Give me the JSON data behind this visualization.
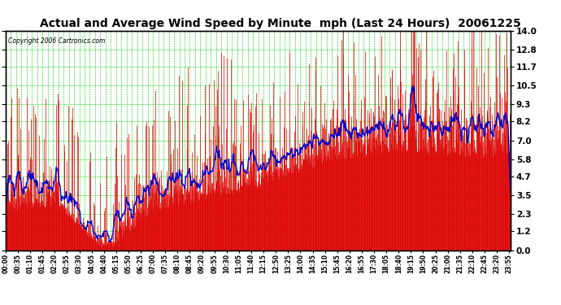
{
  "title": "Actual and Average Wind Speed by Minute  mph (Last 24 Hours)  20061225",
  "copyright": "Copyright 2006 Cartronics.com",
  "yticks": [
    0.0,
    1.2,
    2.3,
    3.5,
    4.7,
    5.8,
    7.0,
    8.2,
    9.3,
    10.5,
    11.7,
    12.8,
    14.0
  ],
  "ymax": 14.0,
  "ymin": 0.0,
  "bg_color": "#ffffff",
  "plot_bg_color": "#ffffff",
  "bar_color": "#dd0000",
  "avg_line_color": "#0000cc",
  "grid_color": "#00cc00",
  "title_fontsize": 10.5,
  "n_minutes": 1440,
  "avg_window": 15,
  "seed": 42
}
